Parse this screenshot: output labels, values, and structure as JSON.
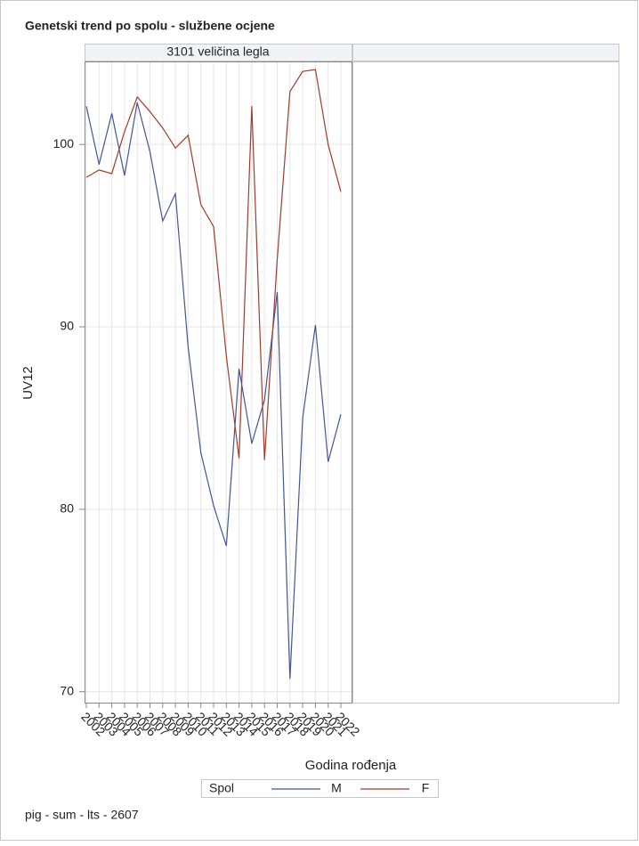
{
  "chart_data": {
    "type": "line",
    "title": "Genetski trend po spolu - službene ocjene",
    "panel_title": "3101 veličina legla",
    "ylabel": "UV12",
    "xlabel": "Godina rođenja",
    "legend_title": "Spol",
    "footnote": "pig - sum - lts - 2607",
    "categories": [
      "2002",
      "2003",
      "2004",
      "2005",
      "2006",
      "2007",
      "2008",
      "2009",
      "2010",
      "2011",
      "2012",
      "2013",
      "2014",
      "2015",
      "2016",
      "2017",
      "2018",
      "2019",
      "2020",
      "2021",
      "2022"
    ],
    "series": [
      {
        "name": "M",
        "color": "#445694",
        "values": [
          102.1,
          98.9,
          101.7,
          98.3,
          102.3,
          99.6,
          95.8,
          97.3,
          88.9,
          83.1,
          80.2,
          78.0,
          87.7,
          83.6,
          86.0,
          91.9,
          70.7,
          85.0,
          90.1,
          82.6,
          85.2
        ]
      },
      {
        "name": "F",
        "color": "#a23a2e",
        "values": [
          98.2,
          98.6,
          98.4,
          100.7,
          102.6,
          101.8,
          100.9,
          99.8,
          100.5,
          96.7,
          95.5,
          88.4,
          82.8,
          102.1,
          82.7,
          93.7,
          102.9,
          104.0,
          104.1,
          100.0,
          97.4
        ]
      }
    ],
    "ylim": [
      69.4,
      104.5
    ],
    "yticks": [
      70,
      80,
      90,
      100
    ],
    "grid": true
  }
}
